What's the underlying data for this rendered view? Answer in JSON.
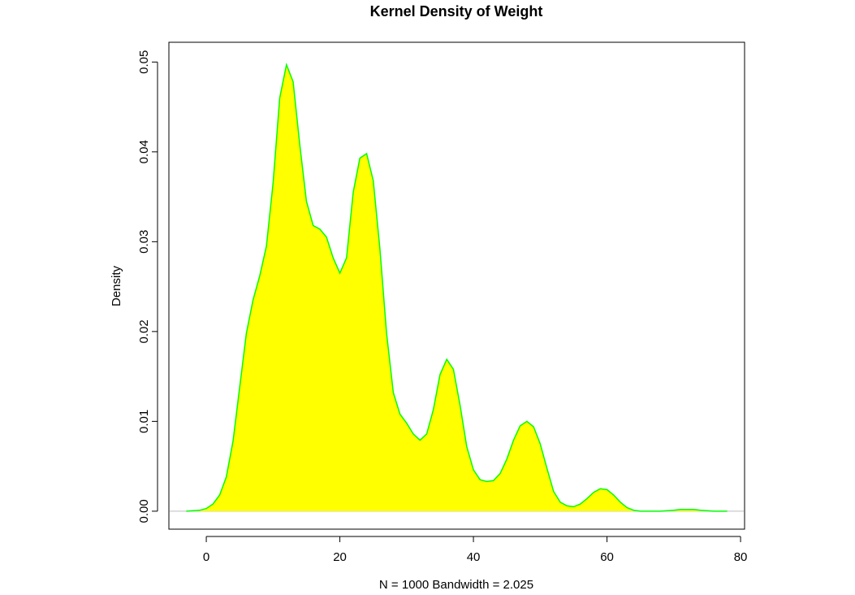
{
  "chart_data": {
    "type": "area",
    "title": "Kernel Density of Weight",
    "xlabel": "N = 1000   Bandwidth = 2.025",
    "ylabel": "Density",
    "xlim": [
      -5.6,
      80.6
    ],
    "ylim": [
      -0.002,
      0.0522
    ],
    "x_ticks": [
      0,
      20,
      40,
      60,
      80
    ],
    "x_tick_labels": [
      "0",
      "20",
      "40",
      "60",
      "80"
    ],
    "y_ticks": [
      0.0,
      0.01,
      0.02,
      0.03,
      0.04,
      0.05
    ],
    "y_tick_labels": [
      "0.00",
      "0.01",
      "0.02",
      "0.03",
      "0.04",
      "0.05"
    ],
    "fill_color": "#ffff00",
    "line_color": "#00ff00",
    "baseline_color": "#bebebe",
    "grid": false,
    "series": [
      {
        "x": [
          -3,
          -1,
          0,
          1,
          2,
          3,
          4,
          5,
          6,
          7,
          8,
          9,
          10,
          11,
          12,
          13,
          14,
          15,
          16,
          17,
          18,
          19,
          20,
          21,
          22,
          23,
          24,
          25,
          26,
          27,
          28,
          29,
          30,
          31,
          32,
          33,
          34,
          35,
          36,
          37,
          38,
          39,
          40,
          41,
          42,
          43,
          44,
          45,
          46,
          47,
          48,
          49,
          50,
          51,
          52,
          53,
          54,
          55,
          56,
          57,
          58,
          59,
          60,
          61,
          62,
          63,
          64,
          65,
          66,
          68,
          70,
          71,
          72,
          73,
          74,
          76,
          78
        ],
        "y": [
          0.0,
          0.0001,
          0.0003,
          0.0008,
          0.0018,
          0.0038,
          0.0078,
          0.0138,
          0.0198,
          0.0235,
          0.0262,
          0.0295,
          0.0365,
          0.046,
          0.0497,
          0.0478,
          0.0408,
          0.0345,
          0.0318,
          0.0314,
          0.0305,
          0.0282,
          0.0265,
          0.0282,
          0.0355,
          0.0393,
          0.0398,
          0.0368,
          0.0292,
          0.0198,
          0.0132,
          0.0108,
          0.0098,
          0.0086,
          0.0079,
          0.0086,
          0.0113,
          0.0152,
          0.0169,
          0.0158,
          0.0118,
          0.0072,
          0.0046,
          0.0035,
          0.0033,
          0.0034,
          0.0042,
          0.0058,
          0.0079,
          0.0095,
          0.01,
          0.0094,
          0.0075,
          0.0048,
          0.0022,
          0.001,
          0.0006,
          0.0005,
          0.0008,
          0.0014,
          0.0021,
          0.0025,
          0.0024,
          0.0018,
          0.001,
          0.0004,
          0.0001,
          0.0,
          0.0,
          0.0,
          0.0001,
          0.0002,
          0.0002,
          0.0002,
          0.0001,
          0.0,
          0.0
        ]
      }
    ]
  }
}
